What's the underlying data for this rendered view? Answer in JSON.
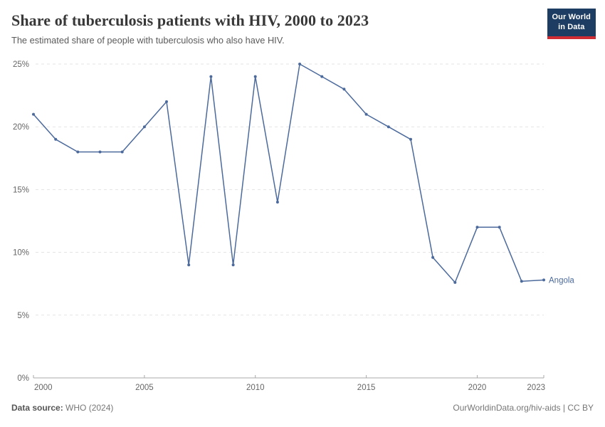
{
  "page": {
    "title": "Share of tuberculosis patients with HIV, 2000 to 2023",
    "subtitle": "The estimated share of people with tuberculosis who also have HIV."
  },
  "logo": {
    "line1": "Our World",
    "line2": "in Data"
  },
  "chart_data": {
    "type": "line",
    "title": "Share of tuberculosis patients with HIV, 2000 to 2023",
    "x": [
      2000,
      2001,
      2002,
      2003,
      2004,
      2005,
      2006,
      2007,
      2008,
      2009,
      2010,
      2011,
      2012,
      2013,
      2014,
      2015,
      2016,
      2017,
      2018,
      2019,
      2020,
      2021,
      2022,
      2023
    ],
    "series": [
      {
        "name": "Angola",
        "color": "#4c6a9c",
        "values": [
          21,
          19,
          18,
          18,
          18,
          20,
          22,
          9,
          24,
          9,
          24,
          14,
          25,
          24,
          23,
          21,
          20,
          19,
          9.6,
          7.6,
          12,
          12,
          7.7,
          7.8
        ]
      }
    ],
    "xlabel": "",
    "ylabel": "",
    "ylim": [
      0,
      25
    ],
    "yticks": [
      0,
      5,
      10,
      15,
      20,
      25
    ],
    "ytick_labels": [
      "0%",
      "5%",
      "10%",
      "15%",
      "20%",
      "25%"
    ],
    "xticks": [
      2000,
      2005,
      2010,
      2015,
      2020,
      2023
    ],
    "grid": "horizontal-dashed",
    "legend_position": "end-of-line",
    "end_label": "Angola"
  },
  "footer": {
    "source_label": "Data source:",
    "source_text": " WHO (2024)",
    "credit": "OurWorldinData.org/hiv-aids | CC BY"
  },
  "colors": {
    "line": "#4c6a9c",
    "grid": "#e3e3e3",
    "axis": "#a8a8a8",
    "axis_text": "#666666",
    "logo_bg": "#1d3d63",
    "logo_accent": "#cf2d33"
  }
}
